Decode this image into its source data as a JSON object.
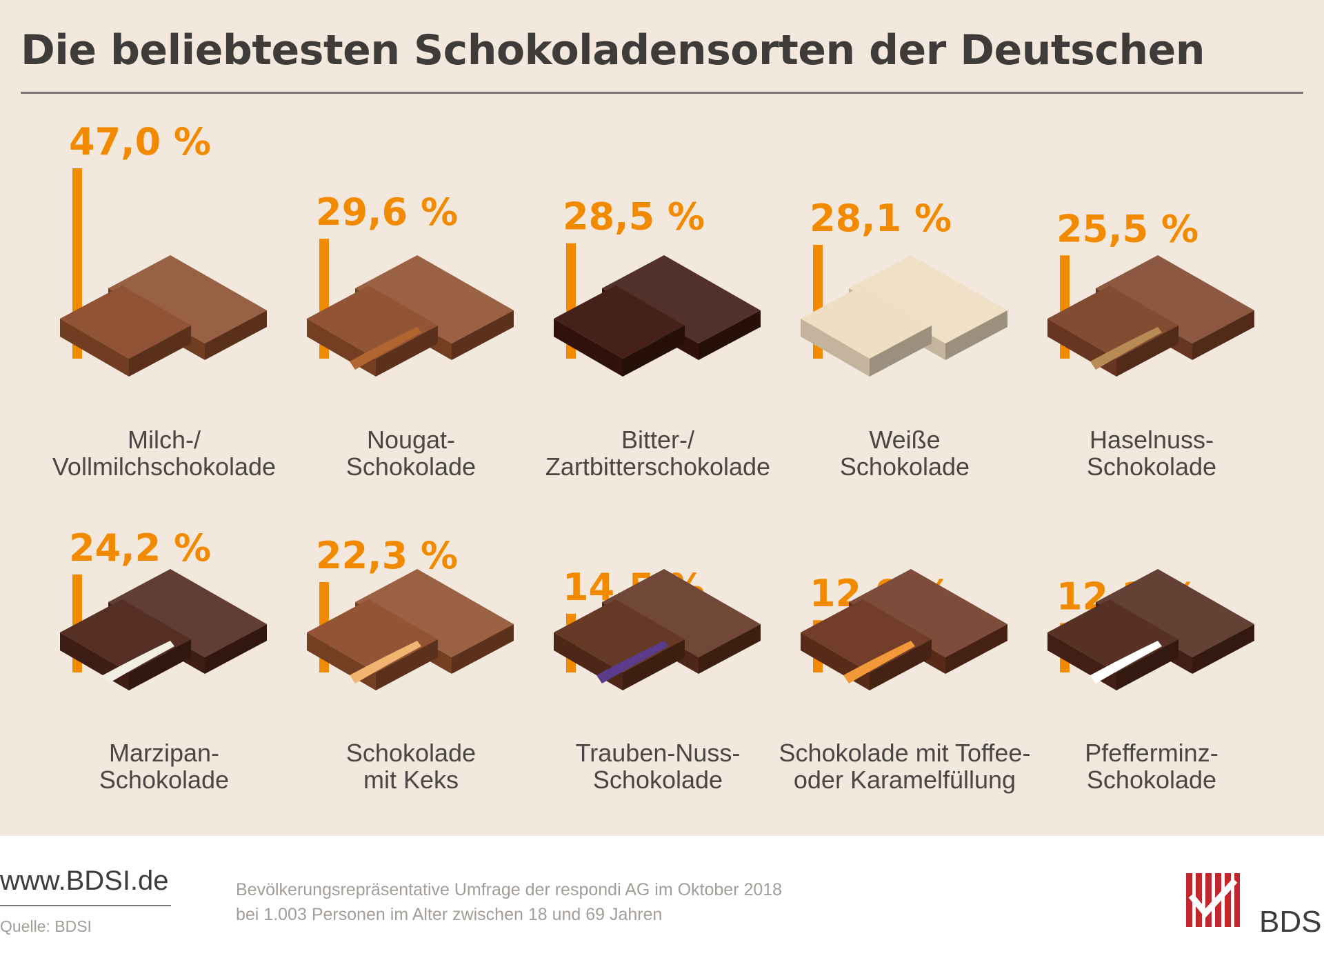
{
  "title": "Die beliebtesten Schokoladensorten der Deutschen",
  "chart_data": {
    "type": "bar",
    "unit": "%",
    "categories": [
      [
        "Milch-/",
        "Vollmilchschokolade"
      ],
      [
        "Nougat-",
        "Schokolade"
      ],
      [
        "Bitter-/",
        "Zartbitterschokolade"
      ],
      [
        "Weiße",
        "Schokolade"
      ],
      [
        "Haselnuss-",
        "Schokolade"
      ],
      [
        "Marzipan-",
        "Schokolade"
      ],
      [
        "Schokolade",
        "mit Keks"
      ],
      [
        "Trauben-Nuss-",
        "Schokolade"
      ],
      [
        "Schokolade mit Toffee-",
        "oder Karamelfüllung"
      ],
      [
        "Pfefferminz-",
        "Schokolade"
      ]
    ],
    "values": [
      47.0,
      29.6,
      28.5,
      28.1,
      25.5,
      24.2,
      22.3,
      14.5,
      12.9,
      12.2
    ],
    "value_labels": [
      "47,0 %",
      "29,6 %",
      "28,5 %",
      "28,1 %",
      "25,5 %",
      "24,2 %",
      "22,3 %",
      "14,5 %",
      "12,9 %",
      "12,2 %"
    ],
    "ylim": [
      0,
      47
    ],
    "grid": false,
    "legend": "none"
  },
  "colors": {
    "bar": "#f28a00",
    "chocolate_variants": [
      "#8a4a2a",
      "#8d4b2b",
      "#3b150e",
      "#efdcc0",
      "#7e4128",
      "#4c2318",
      "#8d4b2b",
      "#5e2f1c",
      "#6b341f",
      "#4f2619"
    ],
    "filling_variants": [
      "",
      "#b0662e",
      "",
      "",
      "#b88a54",
      "#f3eee4",
      "#f2b571",
      "#5a3c8a",
      "#f29a3a",
      "#ffffff"
    ]
  },
  "footer": {
    "url": "www.BDSI.de",
    "source": "Quelle: BDSI",
    "note_line1": "Bevölkerungsrepräsentative Umfrage der respondi AG im Oktober 2018",
    "note_line2": "bei 1.003 Personen im Alter zwischen 18 und 69 Jahren",
    "logo_text": "BDSI"
  }
}
